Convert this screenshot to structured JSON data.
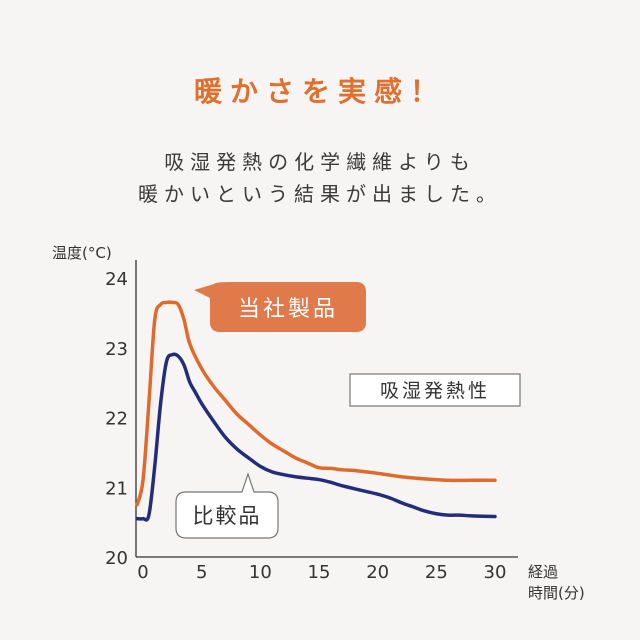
{
  "heading": "暖かさを実感！",
  "description": [
    "吸湿発熱の化学繊維よりも",
    "暖かいという結果が出ました。"
  ],
  "chart_data": {
    "type": "line",
    "ylabel": "温度(°C)",
    "xlabel": [
      "経過",
      "時間(分)"
    ],
    "xlim": [
      0,
      30
    ],
    "ylim": [
      20,
      24.4
    ],
    "xticks": [
      0,
      5,
      10,
      15,
      20,
      25,
      30
    ],
    "yticks": [
      20,
      21,
      22,
      23,
      24
    ],
    "grid": false,
    "annotation": "吸湿発熱性",
    "series": [
      {
        "name": "当社製品",
        "color": "#e06a2c",
        "x": [
          -0.5,
          0,
          0.5,
          1,
          1.5,
          2,
          2.5,
          3,
          3.5,
          4,
          5,
          6,
          7,
          8,
          9,
          10,
          11,
          12,
          13,
          14,
          15,
          16,
          17,
          18,
          19,
          20,
          22,
          24,
          26,
          28,
          30
        ],
        "y": [
          20.75,
          21.1,
          22.2,
          23.4,
          23.62,
          23.65,
          23.65,
          23.62,
          23.4,
          23.05,
          22.7,
          22.45,
          22.25,
          22.05,
          21.9,
          21.75,
          21.62,
          21.52,
          21.42,
          21.35,
          21.28,
          21.27,
          21.25,
          21.24,
          21.22,
          21.2,
          21.15,
          21.12,
          21.1,
          21.1,
          21.1
        ]
      },
      {
        "name": "比較品",
        "color": "#242d7a",
        "x": [
          -0.5,
          0,
          0.5,
          1,
          1.5,
          2,
          2.5,
          3,
          3.5,
          4,
          4.5,
          5,
          6,
          7,
          8,
          9,
          10,
          11,
          12,
          13,
          14,
          15,
          16,
          17,
          18,
          19,
          20,
          21,
          22,
          23,
          24,
          25,
          26,
          27,
          28,
          30
        ],
        "y": [
          20.55,
          20.55,
          20.6,
          21.3,
          22.2,
          22.8,
          22.9,
          22.88,
          22.75,
          22.5,
          22.35,
          22.2,
          21.95,
          21.72,
          21.55,
          21.42,
          21.3,
          21.22,
          21.18,
          21.15,
          21.13,
          21.11,
          21.07,
          21.02,
          20.98,
          20.94,
          20.9,
          20.85,
          20.78,
          20.72,
          20.66,
          20.62,
          20.6,
          20.6,
          20.59,
          20.58
        ]
      }
    ]
  }
}
